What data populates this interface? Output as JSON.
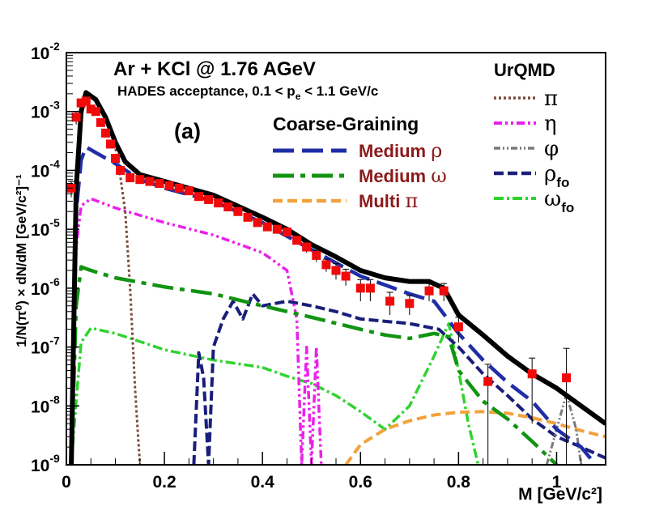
{
  "chart_data": {
    "type": "line",
    "panel_label": "(a)",
    "title": "Ar + KCl @ 1.76 AGeV",
    "subtitle": "HADES acceptance, 0.1 < p_e < 1.1 GeV/c",
    "xlabel": "M  [GeV/c²]",
    "ylabel": "1/N(π⁰) × dN/dM  [GeV/c²]⁻¹",
    "xlim": [
      0,
      1.1
    ],
    "ylim": [
      1e-09,
      0.01
    ],
    "yscale": "log",
    "x_ticks": [
      {
        "v": 0,
        "label": "0"
      },
      {
        "v": 0.2,
        "label": "0.2"
      },
      {
        "v": 0.4,
        "label": "0.4"
      },
      {
        "v": 0.6,
        "label": "0.6"
      },
      {
        "v": 0.8,
        "label": "0.8"
      },
      {
        "v": 1.0,
        "label": "1"
      }
    ],
    "y_ticks": [
      {
        "v": 1e-09,
        "base": "10",
        "exp": "-9"
      },
      {
        "v": 1e-08,
        "base": "10",
        "exp": "-8"
      },
      {
        "v": 1e-07,
        "base": "10",
        "exp": "-7"
      },
      {
        "v": 1e-06,
        "base": "10",
        "exp": "-6"
      },
      {
        "v": 1e-05,
        "base": "10",
        "exp": "-5"
      },
      {
        "v": 0.0001,
        "base": "10",
        "exp": "-4"
      },
      {
        "v": 0.001,
        "base": "10",
        "exp": "-3"
      },
      {
        "v": 0.01,
        "base": "10",
        "exp": "-2"
      }
    ],
    "legend_left": {
      "title": "Coarse-Graining",
      "entries": [
        {
          "name": "Medium",
          "symbol": "ρ",
          "series": "medium_rho"
        },
        {
          "name": "Medium",
          "symbol": "ω",
          "series": "medium_omega"
        },
        {
          "name": "Multi",
          "symbol": "π",
          "series": "multi_pi"
        }
      ]
    },
    "legend_right": {
      "title": "UrQMD",
      "entries": [
        {
          "name": "π",
          "sub": "",
          "series": "pi"
        },
        {
          "name": "η",
          "sub": "",
          "series": "eta"
        },
        {
          "name": "φ",
          "sub": "",
          "series": "phi"
        },
        {
          "name": "ρ",
          "sub": "fo",
          "series": "rho_fo"
        },
        {
          "name": "ω",
          "sub": "fo",
          "series": "omega_fo"
        }
      ]
    },
    "series": [
      {
        "id": "total",
        "color": "#000000",
        "dash": "",
        "width": 6,
        "points": [
          [
            0.01,
            1e-09
          ],
          [
            0.02,
            5e-05
          ],
          [
            0.03,
            0.001
          ],
          [
            0.04,
            0.0021
          ],
          [
            0.06,
            0.0016
          ],
          [
            0.08,
            0.0008
          ],
          [
            0.1,
            0.0003
          ],
          [
            0.12,
            0.00014
          ],
          [
            0.15,
            8.5e-05
          ],
          [
            0.2,
            6.5e-05
          ],
          [
            0.3,
            3.8e-05
          ],
          [
            0.4,
            1.6e-05
          ],
          [
            0.45,
            1e-05
          ],
          [
            0.5,
            5.5e-06
          ],
          [
            0.55,
            3.4e-06
          ],
          [
            0.6,
            2e-06
          ],
          [
            0.65,
            1.5e-06
          ],
          [
            0.7,
            1.3e-06
          ],
          [
            0.74,
            1.3e-06
          ],
          [
            0.77,
            1e-06
          ],
          [
            0.8,
            3.5e-07
          ],
          [
            0.85,
            1.6e-07
          ],
          [
            0.9,
            7e-08
          ],
          [
            0.95,
            3.5e-08
          ],
          [
            1.0,
            2e-08
          ],
          [
            1.05,
            1e-08
          ],
          [
            1.1,
            5e-09
          ]
        ]
      },
      {
        "id": "medium_rho",
        "color": "#1f2ea6",
        "dash": "26,10",
        "width": 4.5,
        "points": [
          [
            0.01,
            1e-09
          ],
          [
            0.02,
            2e-05
          ],
          [
            0.03,
            0.00015
          ],
          [
            0.04,
            0.00025
          ],
          [
            0.06,
            0.0002
          ],
          [
            0.1,
            0.00013
          ],
          [
            0.15,
            7e-05
          ],
          [
            0.2,
            5e-05
          ],
          [
            0.3,
            3e-05
          ],
          [
            0.4,
            1.3e-05
          ],
          [
            0.5,
            4.5e-06
          ],
          [
            0.6,
            1.6e-06
          ],
          [
            0.7,
            8e-07
          ],
          [
            0.75,
            6e-07
          ],
          [
            0.8,
            1.7e-07
          ],
          [
            0.85,
            6e-08
          ],
          [
            0.9,
            2.5e-08
          ],
          [
            0.95,
            1.2e-08
          ],
          [
            1.0,
            4e-09
          ],
          [
            1.05,
            2e-09
          ],
          [
            1.08,
            1e-09
          ]
        ]
      },
      {
        "id": "medium_omega",
        "color": "#129412",
        "dash": "26,8,6,8",
        "width": 4.5,
        "points": [
          [
            0.01,
            1e-09
          ],
          [
            0.02,
            5e-07
          ],
          [
            0.03,
            2.3e-06
          ],
          [
            0.05,
            2e-06
          ],
          [
            0.1,
            1.5e-06
          ],
          [
            0.2,
            1.05e-06
          ],
          [
            0.3,
            8e-07
          ],
          [
            0.4,
            5e-07
          ],
          [
            0.5,
            3.2e-07
          ],
          [
            0.6,
            2e-07
          ],
          [
            0.65,
            1.6e-07
          ],
          [
            0.7,
            1.4e-07
          ],
          [
            0.75,
            1.7e-07
          ],
          [
            0.78,
            1.5e-07
          ],
          [
            0.8,
            4e-08
          ],
          [
            0.85,
            1.2e-08
          ],
          [
            0.9,
            6e-09
          ],
          [
            0.95,
            2.5e-09
          ],
          [
            1.0,
            1e-09
          ]
        ]
      },
      {
        "id": "multi_pi",
        "color": "#f2a23c",
        "dash": "12,6",
        "width": 4,
        "points": [
          [
            0.57,
            1e-09
          ],
          [
            0.6,
            2.2e-09
          ],
          [
            0.65,
            4e-09
          ],
          [
            0.7,
            5.6e-09
          ],
          [
            0.75,
            7e-09
          ],
          [
            0.8,
            7.8e-09
          ],
          [
            0.85,
            8e-09
          ],
          [
            0.9,
            7.5e-09
          ],
          [
            0.95,
            6.3e-09
          ],
          [
            1.0,
            5e-09
          ],
          [
            1.05,
            3.8e-09
          ],
          [
            1.1,
            3e-09
          ]
        ]
      },
      {
        "id": "pi",
        "color": "#7a4a3a",
        "dash": "3,3",
        "width": 3,
        "points": [
          [
            0.06,
            0.0016
          ],
          [
            0.08,
            0.0008
          ],
          [
            0.1,
            0.00025
          ],
          [
            0.11,
            8e-05
          ],
          [
            0.12,
            2e-05
          ],
          [
            0.13,
            1e-06
          ],
          [
            0.14,
            2e-08
          ],
          [
            0.15,
            1e-09
          ]
        ]
      },
      {
        "id": "eta",
        "color": "#ea20ea",
        "dash": "10,4,3,4,3,4",
        "width": 3.5,
        "points": [
          [
            0.01,
            1e-09
          ],
          [
            0.02,
            5e-06
          ],
          [
            0.03,
            2.5e-05
          ],
          [
            0.05,
            3.3e-05
          ],
          [
            0.1,
            2.3e-05
          ],
          [
            0.2,
            1.3e-05
          ],
          [
            0.3,
            8e-06
          ],
          [
            0.4,
            4e-06
          ],
          [
            0.45,
            2e-06
          ],
          [
            0.47,
            3e-07
          ],
          [
            0.48,
            1e-09
          ],
          [
            0.49,
            1e-07
          ],
          [
            0.5,
            1e-09
          ],
          [
            0.51,
            1e-07
          ],
          [
            0.52,
            1e-09
          ]
        ]
      },
      {
        "id": "phi",
        "color": "#7a7a7a",
        "dash": "8,3,2,3,2,3",
        "width": 3,
        "points": [
          [
            0.98,
            1e-09
          ],
          [
            1.0,
            4e-09
          ],
          [
            1.02,
            1.6e-08
          ],
          [
            1.04,
            4e-09
          ],
          [
            1.05,
            1e-09
          ]
        ]
      },
      {
        "id": "rho_fo",
        "color": "#1a1e7a",
        "dash": "12,5",
        "width": 4,
        "points": [
          [
            0.26,
            1e-09
          ],
          [
            0.27,
            8e-08
          ],
          [
            0.28,
            3e-08
          ],
          [
            0.29,
            1e-09
          ],
          [
            0.3,
            1e-07
          ],
          [
            0.32,
            3e-07
          ],
          [
            0.34,
            6e-07
          ],
          [
            0.36,
            3e-07
          ],
          [
            0.38,
            8e-07
          ],
          [
            0.4,
            5e-07
          ],
          [
            0.45,
            6e-07
          ],
          [
            0.5,
            5e-07
          ],
          [
            0.55,
            4e-07
          ],
          [
            0.6,
            3e-07
          ],
          [
            0.7,
            2.5e-07
          ],
          [
            0.76,
            2e-07
          ],
          [
            0.8,
            1e-07
          ],
          [
            0.85,
            3.5e-08
          ],
          [
            0.9,
            1.5e-08
          ],
          [
            0.95,
            6e-09
          ],
          [
            1.0,
            3e-09
          ],
          [
            1.05,
            2e-09
          ],
          [
            1.1,
            1.3e-09
          ]
        ]
      },
      {
        "id": "omega_fo",
        "color": "#2fd32f",
        "dash": "12,4,3,4",
        "width": 3.5,
        "points": [
          [
            0.01,
            1e-09
          ],
          [
            0.02,
            1.2e-08
          ],
          [
            0.03,
            1.2e-07
          ],
          [
            0.05,
            2.1e-07
          ],
          [
            0.1,
            1.7e-07
          ],
          [
            0.2,
            9e-08
          ],
          [
            0.3,
            6e-08
          ],
          [
            0.4,
            4.5e-08
          ],
          [
            0.45,
            3.2e-08
          ],
          [
            0.5,
            2.4e-08
          ],
          [
            0.55,
            1.5e-08
          ],
          [
            0.6,
            8e-09
          ],
          [
            0.65,
            4e-09
          ],
          [
            0.7,
            1e-08
          ],
          [
            0.75,
            7e-08
          ],
          [
            0.78,
            2.5e-07
          ],
          [
            0.8,
            4e-08
          ],
          [
            0.82,
            5e-09
          ],
          [
            0.84,
            1e-09
          ]
        ]
      }
    ],
    "data_points": [
      {
        "x": 0.01,
        "y": 5e-05,
        "e": 1.5e-05
      },
      {
        "x": 0.02,
        "y": 0.0008,
        "e": 0.0002
      },
      {
        "x": 0.03,
        "y": 0.0014,
        "e": 0.0002
      },
      {
        "x": 0.04,
        "y": 0.0015,
        "e": 0.0002
      },
      {
        "x": 0.05,
        "y": 0.0011,
        "e": 0.00015
      },
      {
        "x": 0.06,
        "y": 0.001,
        "e": 0.00015
      },
      {
        "x": 0.07,
        "y": 0.00065,
        "e": 8e-05
      },
      {
        "x": 0.08,
        "y": 0.00043,
        "e": 6e-05
      },
      {
        "x": 0.09,
        "y": 0.00028,
        "e": 3e-05
      },
      {
        "x": 0.1,
        "y": 0.00016,
        "e": 2e-05
      },
      {
        "x": 0.11,
        "y": 0.0001,
        "e": 1e-05
      },
      {
        "x": 0.13,
        "y": 7.5e-05,
        "e": 6e-06
      },
      {
        "x": 0.15,
        "y": 7e-05,
        "e": 5e-06
      },
      {
        "x": 0.17,
        "y": 6.5e-05,
        "e": 4e-06
      },
      {
        "x": 0.19,
        "y": 6e-05,
        "e": 4e-06
      },
      {
        "x": 0.21,
        "y": 5.5e-05,
        "e": 4e-06
      },
      {
        "x": 0.23,
        "y": 5e-05,
        "e": 3e-06
      },
      {
        "x": 0.25,
        "y": 4.5e-05,
        "e": 3e-06
      },
      {
        "x": 0.27,
        "y": 3.6e-05,
        "e": 3e-06
      },
      {
        "x": 0.29,
        "y": 3.2e-05,
        "e": 3e-06
      },
      {
        "x": 0.31,
        "y": 2.8e-05,
        "e": 2e-06
      },
      {
        "x": 0.33,
        "y": 2.4e-05,
        "e": 2e-06
      },
      {
        "x": 0.35,
        "y": 2e-05,
        "e": 2e-06
      },
      {
        "x": 0.37,
        "y": 1.6e-05,
        "e": 2e-06
      },
      {
        "x": 0.39,
        "y": 1.3e-05,
        "e": 1.5e-06
      },
      {
        "x": 0.41,
        "y": 1.1e-05,
        "e": 1.5e-06
      },
      {
        "x": 0.43,
        "y": 1e-05,
        "e": 1.5e-06
      },
      {
        "x": 0.45,
        "y": 9e-06,
        "e": 1.5e-06
      },
      {
        "x": 0.47,
        "y": 6.5e-06,
        "e": 1e-06
      },
      {
        "x": 0.49,
        "y": 5e-06,
        "e": 1e-06
      },
      {
        "x": 0.51,
        "y": 3.6e-06,
        "e": 8e-07
      },
      {
        "x": 0.53,
        "y": 2.5e-06,
        "e": 6e-07
      },
      {
        "x": 0.55,
        "y": 2e-06,
        "e": 6e-07
      },
      {
        "x": 0.57,
        "y": 1.6e-06,
        "e": 5e-07
      },
      {
        "x": 0.6,
        "y": 1e-06,
        "e": 4e-07
      },
      {
        "x": 0.62,
        "y": 1e-06,
        "e": 4e-07
      },
      {
        "x": 0.66,
        "y": 6e-07,
        "e": 2.5e-07
      },
      {
        "x": 0.7,
        "y": 5.5e-07,
        "e": 2e-07
      },
      {
        "x": 0.74,
        "y": 9e-07,
        "e": 3e-07
      },
      {
        "x": 0.77,
        "y": 9e-07,
        "e": 3e-07
      },
      {
        "x": 0.8,
        "y": 2.2e-07,
        "e": 1e-07
      },
      {
        "x": 0.86,
        "y": 2.6e-08,
        "e": 2.5e-08
      },
      {
        "x": 0.95,
        "y": 3.5e-08,
        "e": 3e-08
      },
      {
        "x": 1.02,
        "y": 3e-08,
        "e": 6.5e-08
      }
    ]
  }
}
